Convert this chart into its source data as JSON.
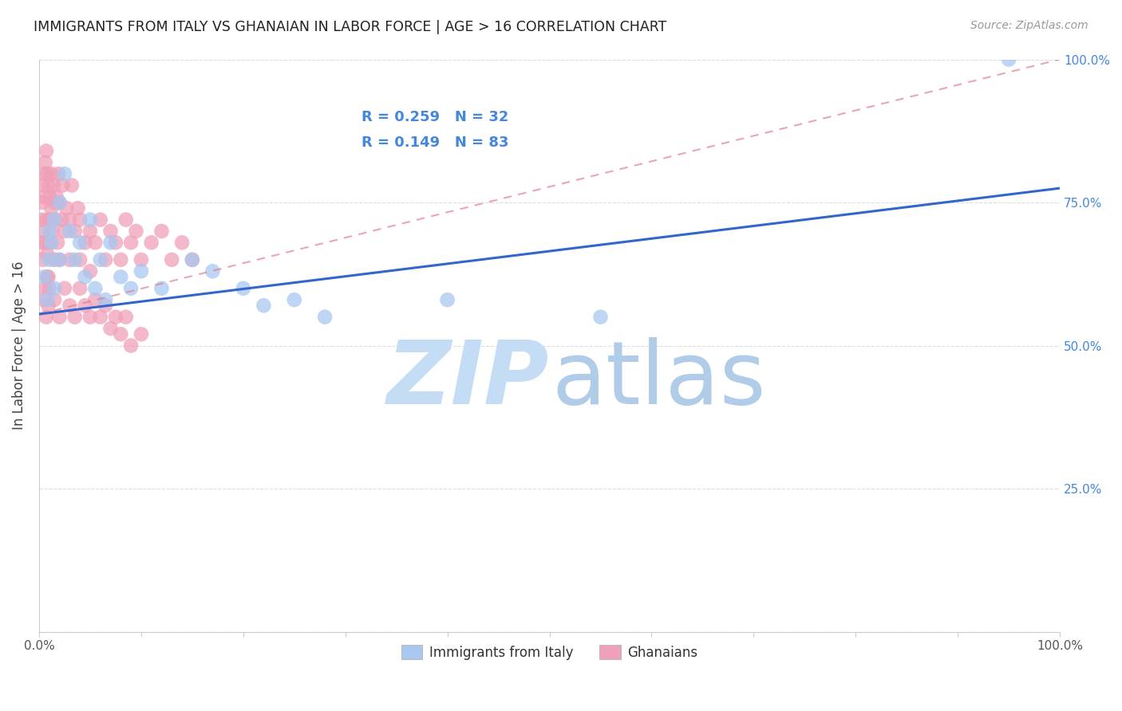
{
  "title": "IMMIGRANTS FROM ITALY VS GHANAIAN IN LABOR FORCE | AGE > 16 CORRELATION CHART",
  "source": "Source: ZipAtlas.com",
  "ylabel": "In Labor Force | Age > 16",
  "italy_color": "#a8c8f0",
  "ghana_color": "#f0a0b8",
  "italy_line_color": "#3366cc",
  "ghana_line_color": "#e08090",
  "background_color": "#ffffff",
  "grid_color": "#dddddd",
  "right_ytick_color": "#4488dd",
  "legend_r_color": "#4488dd",
  "italy_r": "0.259",
  "italy_n": "32",
  "ghana_r": "0.149",
  "ghana_n": "83",
  "italy_scatter_x": [
    0.005,
    0.008,
    0.01,
    0.01,
    0.012,
    0.015,
    0.015,
    0.02,
    0.02,
    0.025,
    0.03,
    0.035,
    0.04,
    0.045,
    0.05,
    0.055,
    0.06,
    0.065,
    0.07,
    0.08,
    0.09,
    0.1,
    0.12,
    0.15,
    0.17,
    0.2,
    0.22,
    0.25,
    0.28,
    0.4,
    0.55,
    0.95
  ],
  "italy_scatter_y": [
    0.62,
    0.58,
    0.65,
    0.7,
    0.68,
    0.72,
    0.6,
    0.75,
    0.65,
    0.8,
    0.7,
    0.65,
    0.68,
    0.62,
    0.72,
    0.6,
    0.65,
    0.58,
    0.68,
    0.62,
    0.6,
    0.63,
    0.6,
    0.65,
    0.63,
    0.6,
    0.57,
    0.58,
    0.55,
    0.58,
    0.55,
    1.0
  ],
  "ghana_scatter_x": [
    0.002,
    0.003,
    0.003,
    0.004,
    0.004,
    0.005,
    0.005,
    0.005,
    0.006,
    0.006,
    0.007,
    0.007,
    0.008,
    0.008,
    0.009,
    0.009,
    0.01,
    0.01,
    0.01,
    0.012,
    0.012,
    0.013,
    0.014,
    0.015,
    0.015,
    0.016,
    0.017,
    0.018,
    0.019,
    0.02,
    0.02,
    0.022,
    0.023,
    0.025,
    0.027,
    0.03,
    0.03,
    0.032,
    0.035,
    0.038,
    0.04,
    0.04,
    0.045,
    0.05,
    0.05,
    0.055,
    0.06,
    0.065,
    0.07,
    0.075,
    0.08,
    0.085,
    0.09,
    0.095,
    0.1,
    0.11,
    0.12,
    0.13,
    0.14,
    0.15,
    0.005,
    0.006,
    0.007,
    0.008,
    0.009,
    0.01,
    0.015,
    0.02,
    0.025,
    0.03,
    0.035,
    0.04,
    0.045,
    0.05,
    0.055,
    0.06,
    0.065,
    0.07,
    0.075,
    0.08,
    0.085,
    0.09,
    0.1
  ],
  "ghana_scatter_y": [
    0.72,
    0.75,
    0.68,
    0.78,
    0.65,
    0.8,
    0.76,
    0.7,
    0.82,
    0.68,
    0.84,
    0.72,
    0.8,
    0.66,
    0.78,
    0.62,
    0.76,
    0.72,
    0.68,
    0.8,
    0.74,
    0.7,
    0.78,
    0.75,
    0.65,
    0.72,
    0.76,
    0.68,
    0.8,
    0.75,
    0.65,
    0.72,
    0.78,
    0.7,
    0.74,
    0.72,
    0.65,
    0.78,
    0.7,
    0.74,
    0.72,
    0.65,
    0.68,
    0.7,
    0.63,
    0.68,
    0.72,
    0.65,
    0.7,
    0.68,
    0.65,
    0.72,
    0.68,
    0.7,
    0.65,
    0.68,
    0.7,
    0.65,
    0.68,
    0.65,
    0.58,
    0.6,
    0.55,
    0.62,
    0.57,
    0.6,
    0.58,
    0.55,
    0.6,
    0.57,
    0.55,
    0.6,
    0.57,
    0.55,
    0.58,
    0.55,
    0.57,
    0.53,
    0.55,
    0.52,
    0.55,
    0.5,
    0.52
  ],
  "italy_trendline": [
    0.0,
    1.0,
    0.555,
    0.775
  ],
  "ghana_trendline": [
    0.0,
    1.0,
    0.555,
    1.0
  ],
  "watermark_zip_color": "#c5dcf5",
  "watermark_atlas_color": "#b0cce8"
}
